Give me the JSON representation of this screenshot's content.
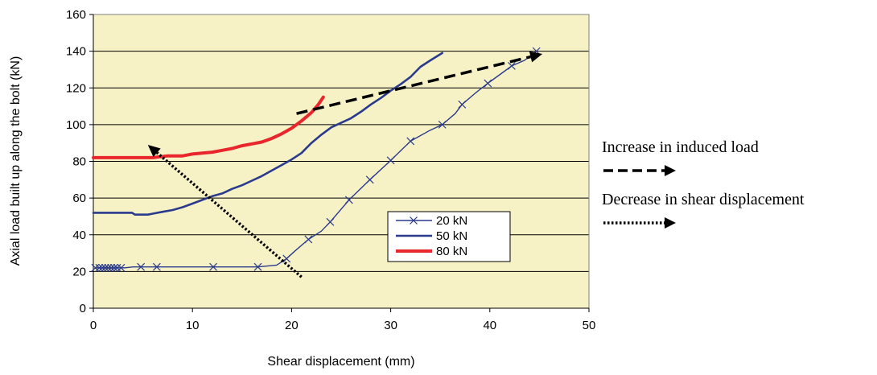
{
  "chart_data": {
    "type": "line",
    "xlabel": "Shear displacement (mm)",
    "ylabel": "Axial load built up along the bolt (kN)",
    "xlim": [
      0,
      50
    ],
    "ylim": [
      0,
      160
    ],
    "xticks": [
      0,
      10,
      20,
      30,
      40,
      50
    ],
    "yticks": [
      0,
      20,
      40,
      60,
      80,
      100,
      120,
      140,
      160
    ],
    "grid": "horizontal",
    "plot_background": "#f7f2c6",
    "legend_position": "lower-right inside plot",
    "series": [
      {
        "name": "20 kN",
        "color": "#2a3a8c",
        "marker": "x",
        "points": [
          [
            0.2,
            22
          ],
          [
            0.6,
            22
          ],
          [
            0.9,
            22
          ],
          [
            1.2,
            22
          ],
          [
            1.5,
            22
          ],
          [
            1.8,
            22
          ],
          [
            2.1,
            22
          ],
          [
            2.4,
            22
          ],
          [
            2.8,
            22
          ],
          [
            3.2,
            22
          ],
          [
            4.0,
            22.5
          ],
          [
            4.8,
            22.5
          ],
          [
            6.4,
            22.5
          ],
          [
            12.1,
            22.5
          ],
          [
            16.6,
            22.5
          ],
          [
            18.5,
            23.5
          ],
          [
            19.5,
            27
          ],
          [
            20.3,
            31
          ],
          [
            21.7,
            37.5
          ],
          [
            23.0,
            42
          ],
          [
            23.9,
            47
          ],
          [
            25.8,
            59
          ],
          [
            27.9,
            70
          ],
          [
            30.0,
            80.5
          ],
          [
            32.0,
            91
          ],
          [
            34.0,
            97
          ],
          [
            35.2,
            100
          ],
          [
            36.5,
            106
          ],
          [
            37.2,
            111
          ],
          [
            38.5,
            117
          ],
          [
            39.8,
            122.5
          ],
          [
            41.2,
            128
          ],
          [
            42.2,
            132
          ],
          [
            43.5,
            135
          ],
          [
            44.7,
            140
          ]
        ],
        "marker_points": [
          [
            0.2,
            22
          ],
          [
            0.6,
            22
          ],
          [
            0.9,
            22
          ],
          [
            1.2,
            22
          ],
          [
            1.5,
            22
          ],
          [
            1.8,
            22
          ],
          [
            2.1,
            22
          ],
          [
            2.4,
            22
          ],
          [
            2.8,
            22
          ],
          [
            4.8,
            22.5
          ],
          [
            6.4,
            22.5
          ],
          [
            12.1,
            22.5
          ],
          [
            16.6,
            22.5
          ],
          [
            19.5,
            27
          ],
          [
            21.7,
            37.5
          ],
          [
            23.9,
            47
          ],
          [
            25.8,
            59
          ],
          [
            27.9,
            70
          ],
          [
            30.0,
            80.5
          ],
          [
            32.0,
            91
          ],
          [
            35.2,
            100
          ],
          [
            37.2,
            111
          ],
          [
            39.8,
            122.5
          ],
          [
            42.2,
            132
          ],
          [
            44.7,
            140
          ]
        ]
      },
      {
        "name": "50 kN",
        "color": "#2a3a8c",
        "marker": "none",
        "points": [
          [
            0,
            52
          ],
          [
            1,
            52
          ],
          [
            2,
            52
          ],
          [
            3,
            52
          ],
          [
            3.9,
            52
          ],
          [
            4.2,
            51
          ],
          [
            5,
            51
          ],
          [
            5.5,
            51
          ],
          [
            6,
            51.5
          ],
          [
            7,
            52.5
          ],
          [
            8,
            53.5
          ],
          [
            9,
            55
          ],
          [
            10,
            57
          ],
          [
            11,
            59
          ],
          [
            12,
            61
          ],
          [
            13,
            62.5
          ],
          [
            14,
            65
          ],
          [
            15,
            67
          ],
          [
            16,
            69.5
          ],
          [
            17,
            72
          ],
          [
            18,
            75
          ],
          [
            19,
            78
          ],
          [
            20,
            81
          ],
          [
            21,
            84.5
          ],
          [
            22,
            90
          ],
          [
            23,
            94.5
          ],
          [
            24,
            98.5
          ],
          [
            25,
            101
          ],
          [
            26,
            103.5
          ],
          [
            27,
            107
          ],
          [
            28,
            111
          ],
          [
            29,
            114.5
          ],
          [
            30,
            118.5
          ],
          [
            31,
            122
          ],
          [
            32,
            126
          ],
          [
            33,
            131.5
          ],
          [
            34,
            135
          ],
          [
            35.2,
            139
          ]
        ]
      },
      {
        "name": "80 kN",
        "color": "#e8262b",
        "marker": "none",
        "points": [
          [
            0,
            82
          ],
          [
            2,
            82
          ],
          [
            4,
            82
          ],
          [
            6,
            82
          ],
          [
            7.5,
            83
          ],
          [
            9,
            83
          ],
          [
            10,
            84
          ],
          [
            11,
            84.5
          ],
          [
            12,
            85
          ],
          [
            13,
            86
          ],
          [
            14,
            87
          ],
          [
            15,
            88.5
          ],
          [
            16,
            89.5
          ],
          [
            17,
            90.5
          ],
          [
            18,
            92.5
          ],
          [
            19,
            95
          ],
          [
            20,
            98
          ],
          [
            21,
            102
          ],
          [
            22,
            106.5
          ],
          [
            22.7,
            111
          ],
          [
            23.2,
            115
          ]
        ]
      }
    ],
    "annotations": [
      {
        "text": "Increase in induced load",
        "style": "dashed",
        "arrow_from": [
          20.5,
          106
        ],
        "arrow_to": [
          45.3,
          138.5
        ]
      },
      {
        "text": "Decrease in shear displacement",
        "style": "dotted",
        "arrow_from": [
          21,
          17
        ],
        "arrow_to": [
          5.5,
          89
        ]
      }
    ]
  }
}
